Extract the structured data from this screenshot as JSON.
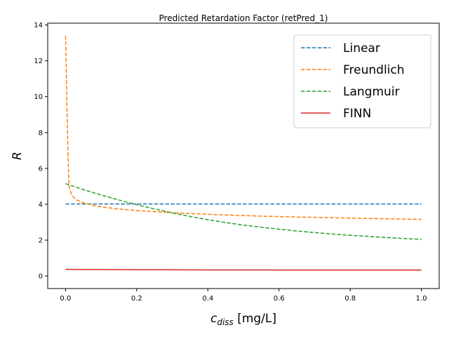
{
  "chart_data": {
    "type": "line",
    "title": "Predicted Retardation Factor (retPred_1)",
    "xlabel": {
      "main": "c",
      "sub": "diss",
      "unit": " [mg/L]"
    },
    "ylabel": "R",
    "xlim": [
      -0.05,
      1.05
    ],
    "ylim": [
      -0.7,
      14.1
    ],
    "xticks": [
      0.0,
      0.2,
      0.4,
      0.6,
      0.8,
      1.0
    ],
    "xtick_labels": [
      "0.0",
      "0.2",
      "0.4",
      "0.6",
      "0.8",
      "1.0"
    ],
    "yticks": [
      0,
      2,
      4,
      6,
      8,
      10,
      12,
      14
    ],
    "ytick_labels": [
      "0",
      "2",
      "4",
      "6",
      "8",
      "10",
      "12",
      "14"
    ],
    "grid": false,
    "legend_position": "top-right",
    "series": [
      {
        "name": "Linear",
        "color": "#1f77b4",
        "dash": "dashed",
        "x": [
          0.0,
          1.0
        ],
        "y": [
          4.02,
          4.02
        ]
      },
      {
        "name": "Freundlich",
        "color": "#ff7f0e",
        "dash": "dashed",
        "x": [
          0.0,
          0.002,
          0.004,
          0.006,
          0.008,
          0.01,
          0.015,
          0.02,
          0.03,
          0.05,
          0.08,
          0.1,
          0.15,
          0.2,
          0.3,
          0.4,
          0.5,
          0.6,
          0.7,
          0.8,
          0.9,
          1.0
        ],
        "y": [
          13.4,
          11.8,
          9.5,
          7.6,
          6.2,
          5.0,
          4.65,
          4.45,
          4.25,
          4.08,
          3.93,
          3.86,
          3.73,
          3.65,
          3.53,
          3.44,
          3.37,
          3.31,
          3.27,
          3.23,
          3.19,
          3.16
        ]
      },
      {
        "name": "Langmuir",
        "color": "#2ca02c",
        "dash": "dashed",
        "x": [
          0.0,
          0.05,
          0.1,
          0.15,
          0.2,
          0.25,
          0.3,
          0.35,
          0.4,
          0.45,
          0.5,
          0.55,
          0.6,
          0.65,
          0.7,
          0.75,
          0.8,
          0.85,
          0.9,
          0.95,
          1.0
        ],
        "y": [
          5.15,
          4.82,
          4.52,
          4.24,
          3.98,
          3.74,
          3.52,
          3.32,
          3.14,
          2.98,
          2.84,
          2.72,
          2.61,
          2.51,
          2.42,
          2.34,
          2.27,
          2.21,
          2.15,
          2.09,
          2.04
        ]
      },
      {
        "name": "FINN",
        "color": "#d62728",
        "dash": "solid",
        "x": [
          0.0,
          0.1,
          0.2,
          0.3,
          0.4,
          0.5,
          0.6,
          0.7,
          0.8,
          0.9,
          1.0
        ],
        "y": [
          0.37,
          0.36,
          0.35,
          0.345,
          0.34,
          0.34,
          0.335,
          0.335,
          0.335,
          0.335,
          0.335
        ]
      }
    ]
  }
}
